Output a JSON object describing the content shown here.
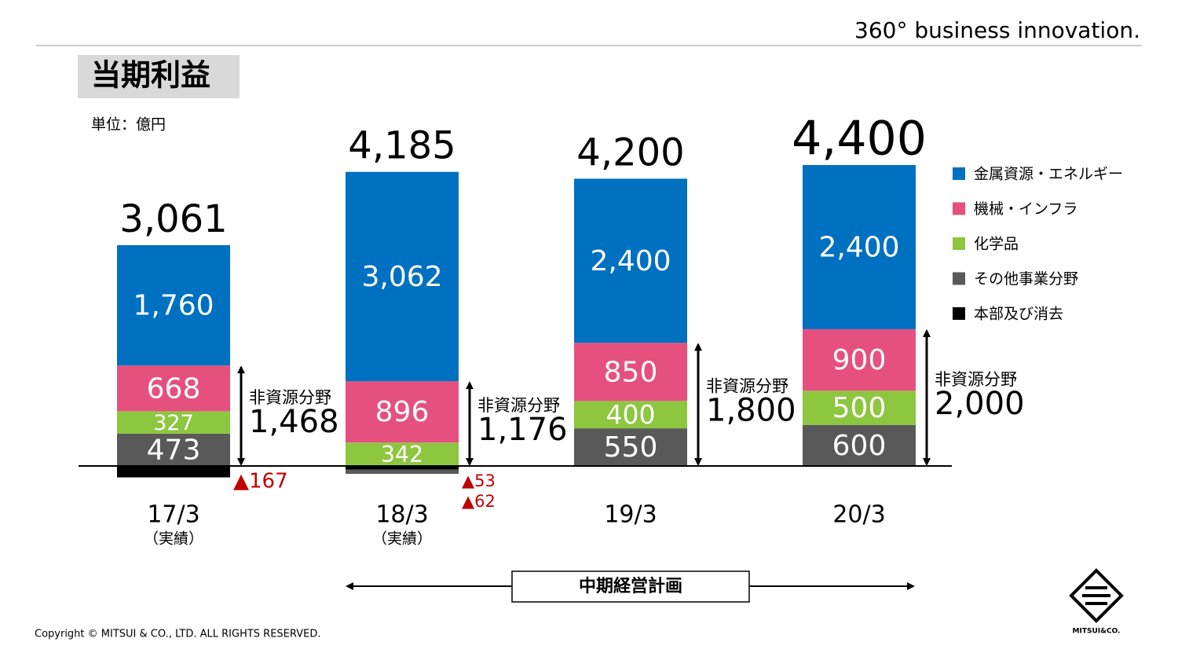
{
  "header": {
    "tagline": "360° business innovation."
  },
  "title": "当期利益",
  "unit": "単位：億円",
  "chart_data": {
    "type": "stacked_bar",
    "categories": [
      "17/3",
      "18/3",
      "19/3",
      "20/3"
    ],
    "category_notes": [
      "（実績）",
      "（実績）",
      null,
      null
    ],
    "series": [
      {
        "name": "金属資源・エネルギー",
        "color": "#0070c0",
        "values": [
          1760,
          3062,
          2400,
          2400
        ],
        "value_labels": [
          "1,760",
          "3,062",
          "2,400",
          "2,400"
        ]
      },
      {
        "name": "機械・インフラ",
        "color": "#e6507e",
        "values": [
          668,
          896,
          850,
          900
        ]
      },
      {
        "name": "化学品",
        "color": "#8dc63f",
        "values": [
          327,
          342,
          400,
          500
        ]
      },
      {
        "name": "その他事業分野",
        "color": "#595959",
        "values": [
          473,
          -62,
          550,
          600
        ],
        "value_labels": [
          "473",
          "▲62",
          "550",
          "600"
        ]
      },
      {
        "name": "本部及び消去",
        "color": "#000000",
        "values": [
          -167,
          -53,
          null,
          null
        ],
        "value_labels": [
          "▲167",
          "▲53",
          null,
          null
        ]
      }
    ],
    "totals": [
      3061,
      4185,
      4200,
      4400
    ],
    "total_labels": [
      "3,061",
      "4,185",
      "4,200",
      "4,400"
    ],
    "non_resource": {
      "label": "非資源分野",
      "values": [
        1468,
        1176,
        1800,
        2000
      ],
      "value_labels": [
        "1,468",
        "1,176",
        "1,800",
        "2,000"
      ]
    },
    "legend": "right"
  },
  "plan_label": "中期経営計画",
  "logo": "MITSUI&CO.",
  "footer": "Copyright © MITSUI & CO., LTD. ALL RIGHTS RESERVED."
}
